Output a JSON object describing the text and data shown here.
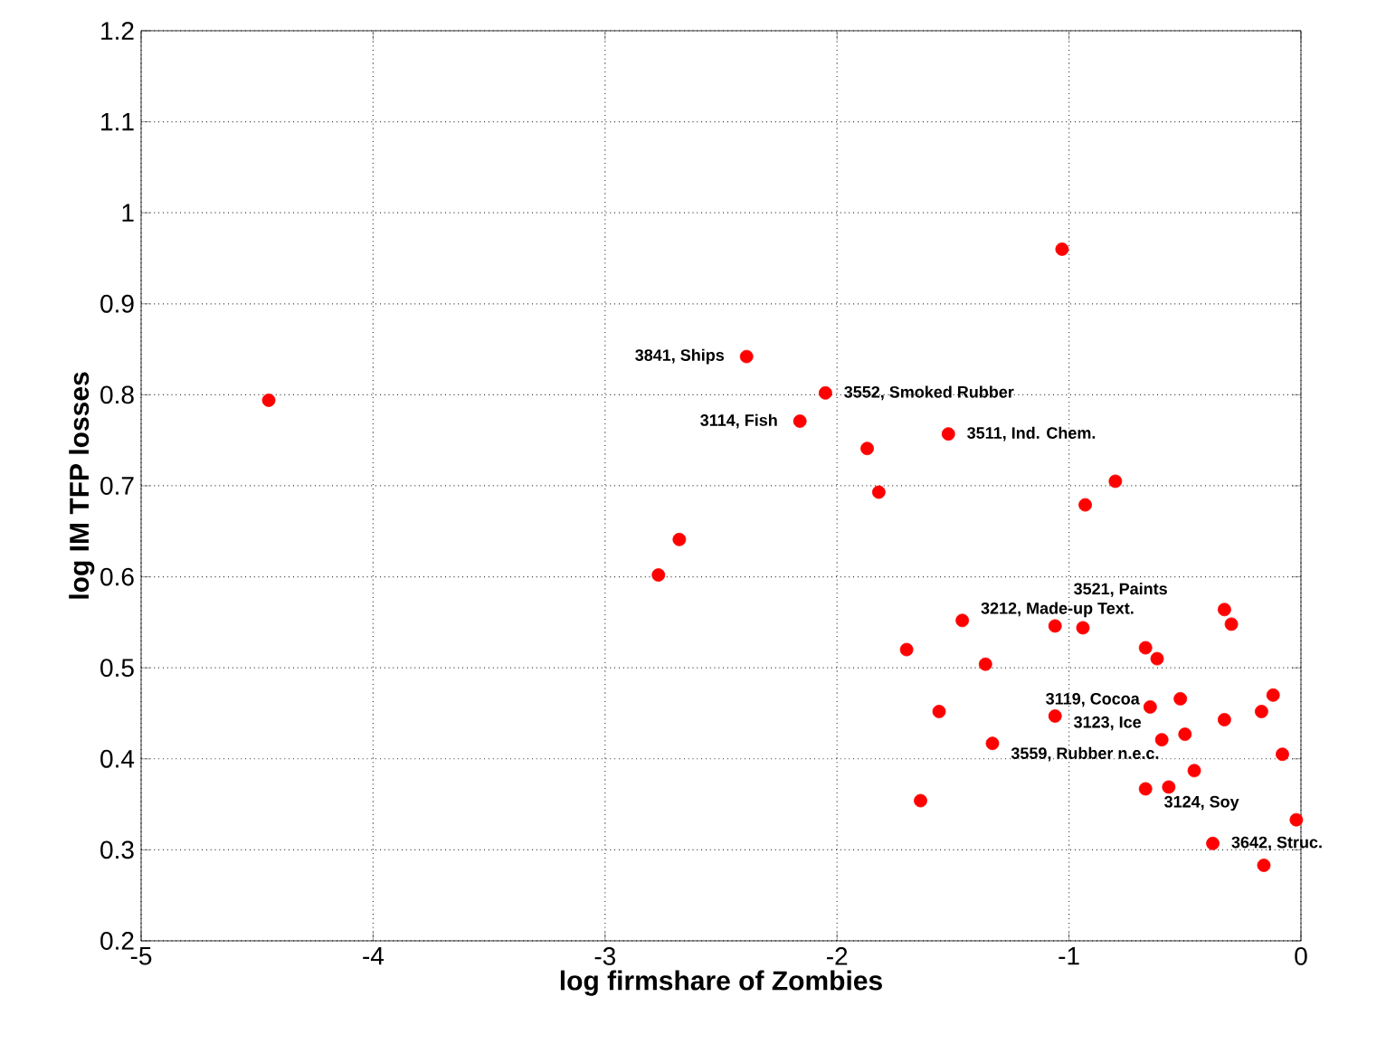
{
  "chart_data": {
    "type": "scatter",
    "xlabel": "log firmshare of Zombies",
    "ylabel": "log IM TFP losses",
    "x": [
      -4.45,
      -2.77,
      -2.68,
      -2.39,
      -2.05,
      -2.16,
      -1.87,
      -1.82,
      -1.52,
      -1.03,
      -0.8,
      -0.93,
      -1.46,
      -1.7,
      -1.36,
      -1.06,
      -0.94,
      -0.67,
      -0.62,
      -0.33,
      -0.3,
      -1.56,
      -1.06,
      -0.65,
      -0.52,
      -0.12,
      -0.17,
      -0.33,
      -0.5,
      -0.6,
      -1.33,
      -0.08,
      -0.46,
      -0.67,
      -0.57,
      -1.64,
      -0.02,
      -0.38,
      -0.16
    ],
    "series": [
      {
        "color": "#ff0000",
        "values": [
          0.794,
          0.602,
          0.641,
          0.842,
          0.802,
          0.771,
          0.741,
          0.693,
          0.757,
          0.96,
          0.705,
          0.679,
          0.552,
          0.52,
          0.504,
          0.546,
          0.544,
          0.522,
          0.51,
          0.564,
          0.548,
          0.452,
          0.447,
          0.457,
          0.466,
          0.47,
          0.452,
          0.443,
          0.427,
          0.421,
          0.417,
          0.405,
          0.387,
          0.367,
          0.369,
          0.354,
          0.333,
          0.307,
          0.283
        ]
      }
    ],
    "marker": "circle",
    "grid": true,
    "xlim": [
      -5,
      0
    ],
    "ylim": [
      0.2,
      1.2
    ],
    "xticks": [
      -5,
      -4,
      -3,
      -2,
      -1,
      0
    ],
    "yticks": [
      0.2,
      0.3,
      0.4,
      0.5,
      0.6,
      0.7,
      0.8,
      0.9,
      1,
      1.1,
      1.2
    ],
    "annotations": [
      {
        "text": "3841,  Ships",
        "x": -2.39,
        "y": 0.842
      },
      {
        "text": "3552,  Smoked Rubber",
        "x": -2.05,
        "y": 0.802
      },
      {
        "text": "3114,  Fish",
        "x": -2.16,
        "y": 0.771
      },
      {
        "text": "3511,  Ind. Chem.",
        "x": -1.52,
        "y": 0.757
      },
      {
        "text": "3212,  Made-up Text.",
        "x": -1.46,
        "y": 0.552
      },
      {
        "text": "3521,  Paints",
        "x": -1.06,
        "y": 0.546
      },
      {
        "text": "3123,  Ice",
        "x": -1.06,
        "y": 0.447
      },
      {
        "text": "3559,  Rubber n.e.c.",
        "x": -1.33,
        "y": 0.417
      },
      {
        "text": "3119,  Cocoa",
        "x": -0.6,
        "y": 0.421
      },
      {
        "text": "3124,  Soy",
        "x": -0.67,
        "y": 0.367
      },
      {
        "text": "3642,  Struc.",
        "x": -0.38,
        "y": 0.307
      }
    ]
  }
}
